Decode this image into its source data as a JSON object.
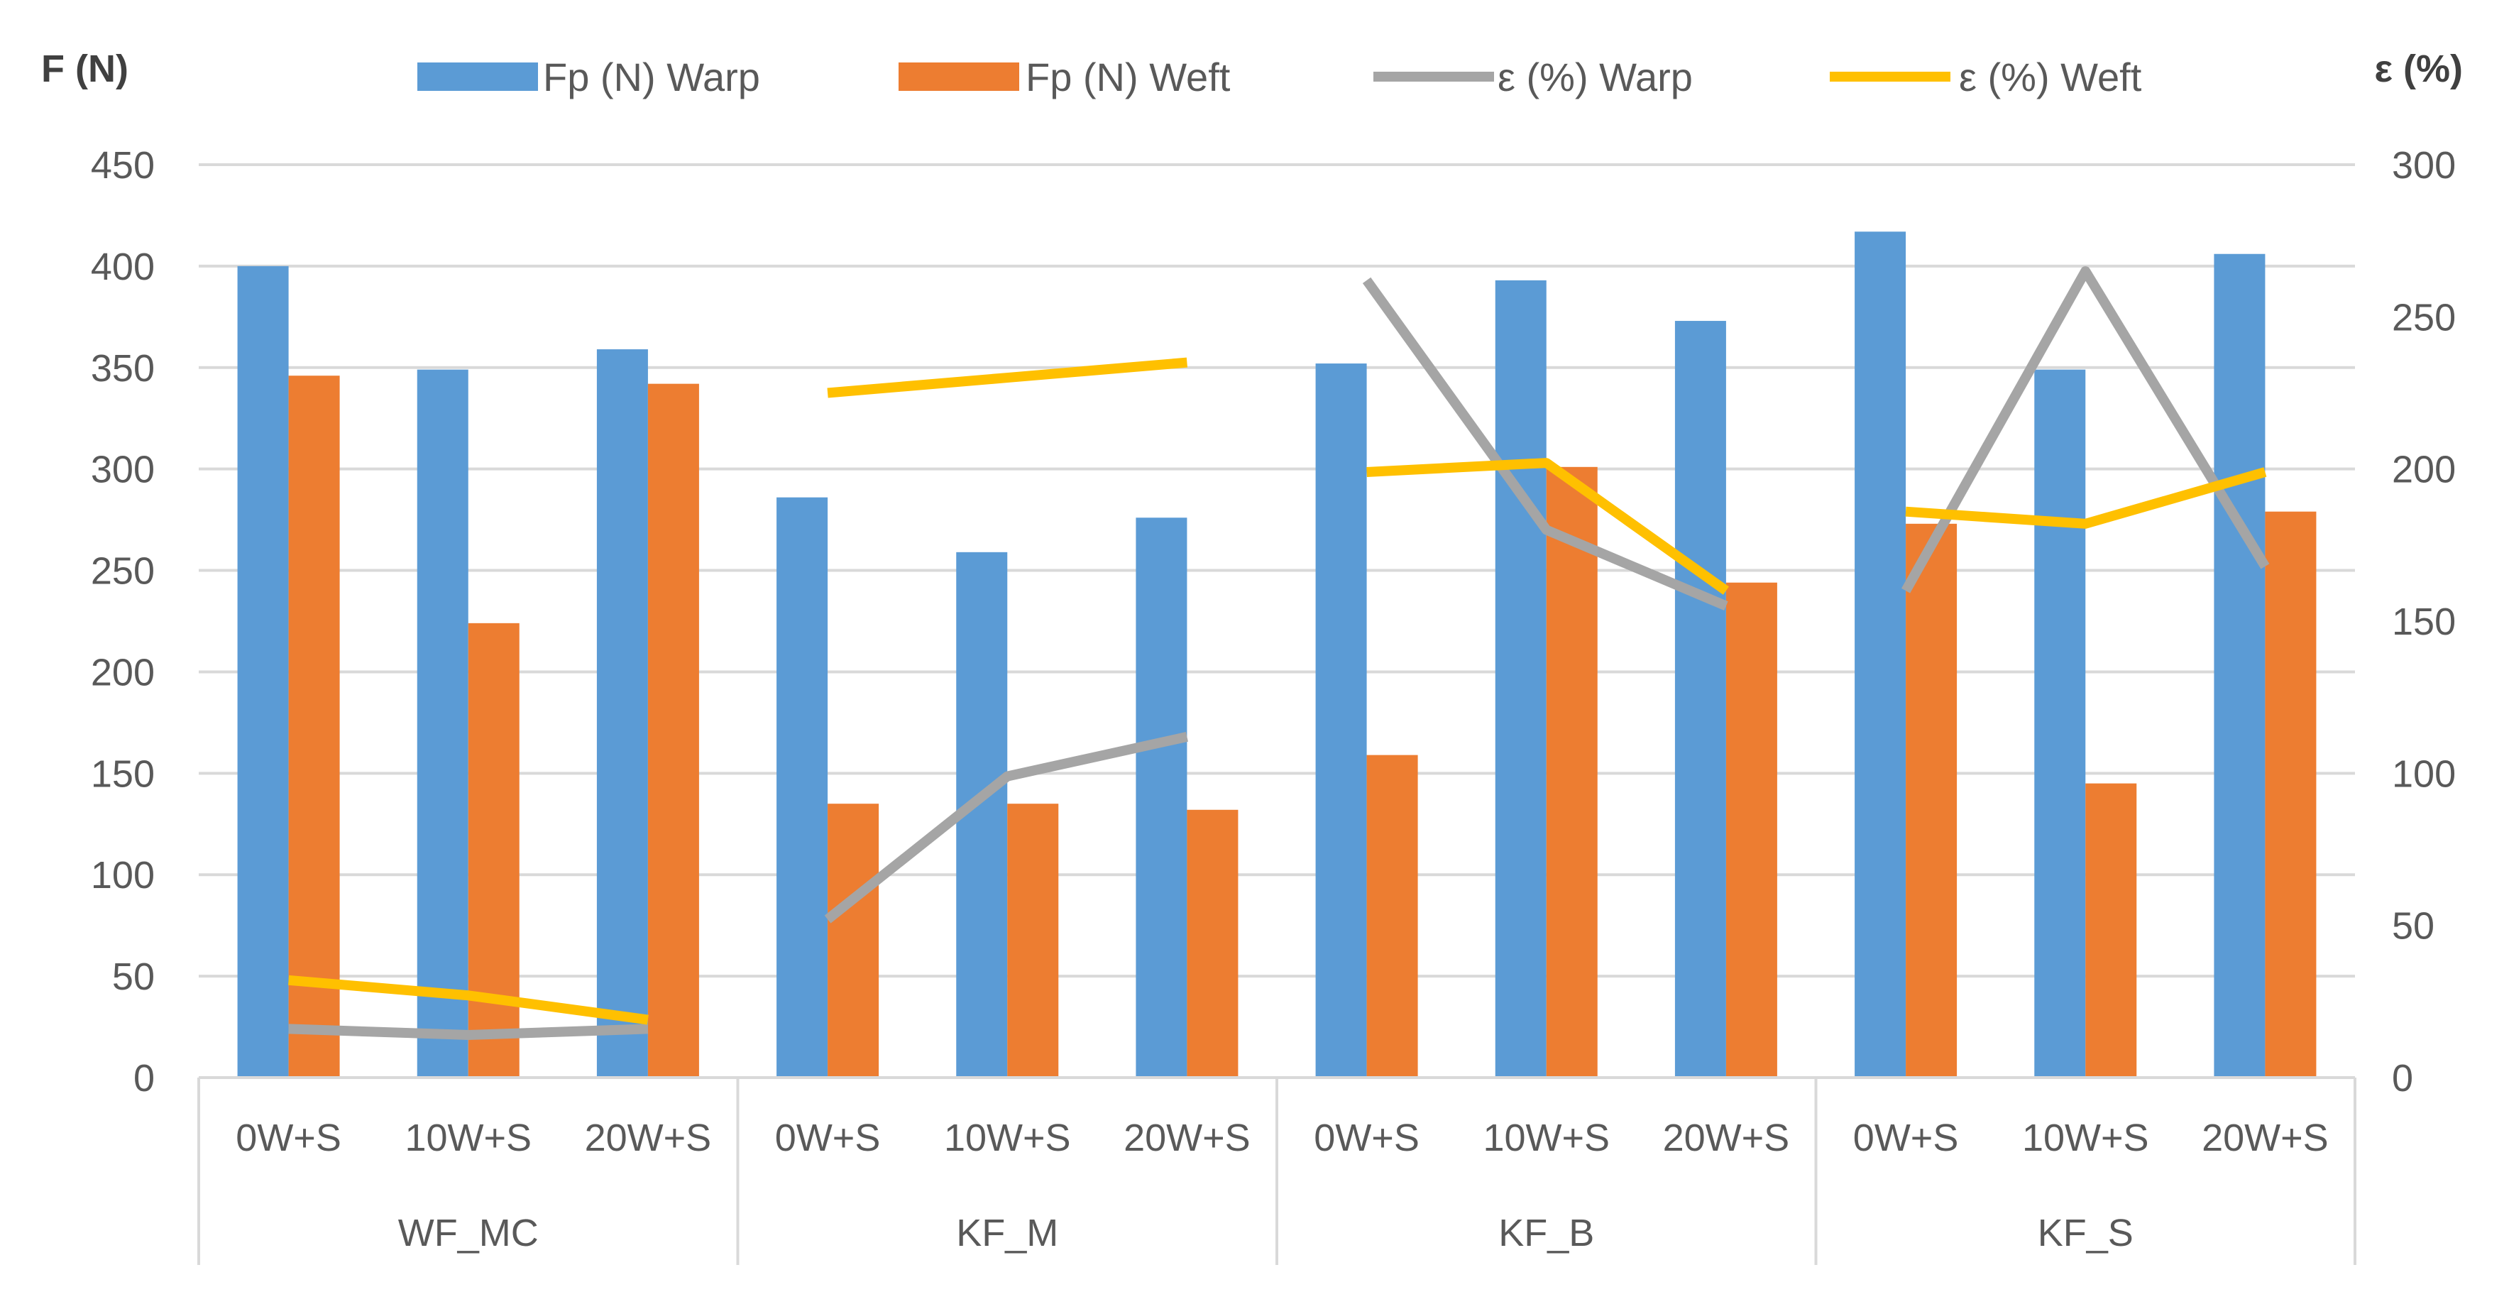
{
  "chart_data": {
    "type": "bar",
    "title": "",
    "left_axis": {
      "label": "F (N)",
      "min": 0,
      "max": 450,
      "step": 50,
      "ticks": [
        "0",
        "50",
        "100",
        "150",
        "200",
        "250",
        "300",
        "350",
        "400",
        "450"
      ]
    },
    "right_axis": {
      "label": "ε (%)",
      "min": 0,
      "max": 300,
      "step": 50,
      "ticks": [
        "0",
        "50",
        "100",
        "150",
        "200",
        "250",
        "300"
      ]
    },
    "groups": [
      "WF_MC",
      "KF_M",
      "KF_B",
      "KF_S"
    ],
    "categories": [
      "0W+S",
      "10W+S",
      "20W+S",
      "0W+S",
      "10W+S",
      "20W+S",
      "0W+S",
      "10W+S",
      "20W+S",
      "0W+S",
      "10W+S",
      "20W+S"
    ],
    "grid": true,
    "legend_position": "top",
    "series": [
      {
        "name": "Fp (N) Warp",
        "kind": "bar",
        "axis": "left",
        "color": "#5B9BD5",
        "values": [
          400,
          349,
          359,
          286,
          259,
          276,
          352,
          393,
          373,
          417,
          349,
          406
        ]
      },
      {
        "name": "Fp (N) Weft",
        "kind": "bar",
        "axis": "left",
        "color": "#ED7D31",
        "values": [
          346,
          224,
          342,
          135,
          135,
          132,
          159,
          301,
          244,
          273,
          145,
          279
        ]
      },
      {
        "name": "ε (%) Warp",
        "kind": "line",
        "axis": "right",
        "color": "#A5A5A5",
        "segments": [
          [
            16,
            14,
            16
          ],
          [
            52,
            99,
            112
          ],
          [
            262,
            180,
            155
          ],
          [
            160,
            265,
            168
          ]
        ]
      },
      {
        "name": "ε (%) Weft",
        "kind": "line",
        "axis": "right",
        "color": "#FFC000",
        "segments": [
          [
            32,
            27,
            19
          ],
          [
            225,
            230,
            235
          ],
          [
            199,
            202,
            160
          ],
          [
            186,
            182,
            199
          ]
        ]
      }
    ]
  }
}
